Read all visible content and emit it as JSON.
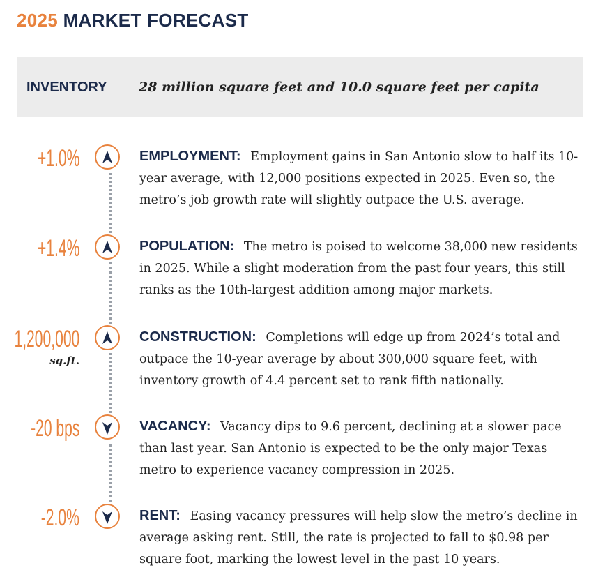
{
  "header": {
    "year": "2025",
    "title": "MARKET FORECAST"
  },
  "inventory": {
    "label": "INVENTORY",
    "value": "28 million square feet and 10.0 square feet per capita"
  },
  "colors": {
    "accent": "#e8823d",
    "navy": "#1b2a4a",
    "band": "#ececec"
  },
  "forecasts": [
    {
      "stat": "+1.0%",
      "stat_sub": "",
      "direction": "up",
      "icon": "arrow-up-icon",
      "heading": "EMPLOYMENT:",
      "text": "Employment gains in San Antonio slow to half its 10-year average, with 12,000 positions expected in 2025. Even so, the metro’s job growth rate will slightly outpace the U.S. average."
    },
    {
      "stat": "+1.4%",
      "stat_sub": "",
      "direction": "up",
      "icon": "arrow-up-icon",
      "heading": "POPULATION:",
      "text": "The metro is poised to welcome 38,000 new resi­dents in 2025. While a slight moderation from the past four years, this still ranks as the 10th-largest addition among major markets."
    },
    {
      "stat": "1,200,000",
      "stat_sub": "sq.ft.",
      "direction": "up",
      "icon": "arrow-up-icon",
      "heading": "CONSTRUCTION:",
      "text": "Completions will edge up from 2024’s total and outpace the 10-year average by about 300,000 square feet, with inventory growth of 4.4 percent set to rank fifth nationally."
    },
    {
      "stat": "-20 bps",
      "stat_sub": "",
      "direction": "down",
      "icon": "arrow-down-icon",
      "heading": "VACANCY:",
      "text": "Vacancy dips to 9.6 percent, declining at a slower pace than last year. San Antonio is expected to be the only major Texas metro to experience vacancy compression in 2025."
    },
    {
      "stat": "-2.0%",
      "stat_sub": "",
      "direction": "down",
      "icon": "arrow-down-icon",
      "heading": "RENT:",
      "text": "Easing vacancy pressures will help slow the metro’s decline in average asking rent. Still, the rate is projected to fall to $0.98 per square foot, marking the lowest level in the past 10 years."
    }
  ]
}
